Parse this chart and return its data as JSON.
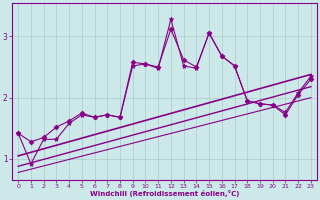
{
  "xlabel": "Windchill (Refroidissement éolien,°C)",
  "background_color": "#cce8e8",
  "line_color": "#880088",
  "grid_color": "#aacccc",
  "xlim": [
    -0.5,
    23.5
  ],
  "ylim": [
    0.65,
    3.55
  ],
  "xticks": [
    0,
    1,
    2,
    3,
    4,
    5,
    6,
    7,
    8,
    9,
    10,
    11,
    12,
    13,
    14,
    15,
    16,
    17,
    18,
    19,
    20,
    21,
    22,
    23
  ],
  "yticks": [
    1,
    2,
    3
  ],
  "series1_x": [
    0,
    1,
    2,
    3,
    4,
    5,
    6,
    7,
    8,
    9,
    10,
    11,
    12,
    13,
    14,
    15,
    16,
    17,
    18,
    19,
    20,
    21,
    22,
    23
  ],
  "series1_y": [
    1.42,
    1.28,
    1.35,
    1.52,
    1.62,
    1.75,
    1.68,
    1.72,
    1.68,
    2.58,
    2.55,
    2.5,
    3.12,
    2.62,
    2.5,
    3.05,
    2.68,
    2.52,
    1.95,
    1.9,
    1.88,
    1.72,
    2.05,
    2.3
  ],
  "series2_x": [
    0,
    1,
    2,
    3,
    4,
    5,
    6,
    7,
    8,
    9,
    10,
    11,
    12,
    13,
    14,
    15,
    16,
    17,
    18,
    19,
    20,
    21,
    22,
    23
  ],
  "series2_y": [
    1.42,
    0.92,
    1.32,
    1.32,
    1.58,
    1.72,
    1.68,
    1.72,
    1.68,
    2.52,
    2.55,
    2.48,
    3.28,
    2.52,
    2.48,
    3.06,
    2.68,
    2.52,
    1.95,
    1.9,
    1.88,
    1.76,
    2.08,
    2.35
  ],
  "line1_x": [
    0,
    23
  ],
  "line1_y": [
    1.05,
    2.38
  ],
  "line2_x": [
    0,
    23
  ],
  "line2_y": [
    0.88,
    2.18
  ],
  "line3_x": [
    0,
    23
  ],
  "line3_y": [
    0.78,
    2.0
  ]
}
